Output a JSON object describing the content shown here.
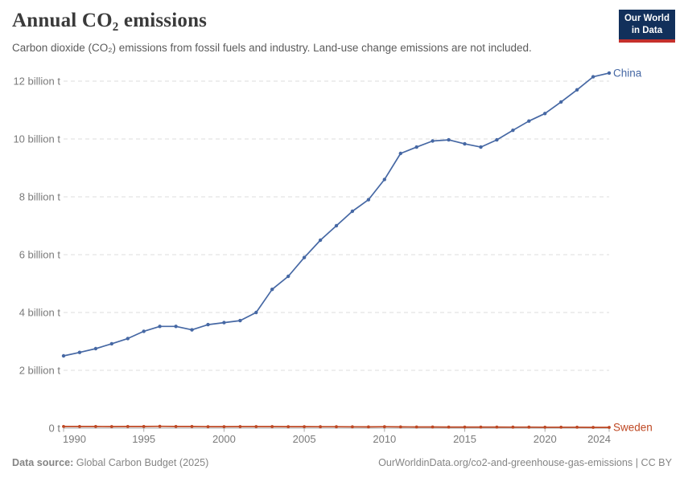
{
  "header": {
    "title": "Annual CO₂ emissions",
    "subtitle": "Carbon dioxide (CO₂) emissions from fossil fuels and industry. Land-use change emissions are not included.",
    "logo": {
      "line1": "Our World",
      "line2": "in Data"
    }
  },
  "footer": {
    "source_label": "Data source:",
    "source_value": "Global Carbon Budget (2025)",
    "link_text": "OurWorldinData.org/co2-and-greenhouse-gas-emissions | CC BY"
  },
  "colors": {
    "china_line": "#4668A4",
    "sweden_line": "#BE4722",
    "logo_bg": "#12305B",
    "logo_stripe": "#C5302C",
    "gridline": "#DCDCDC",
    "axis": "#ABABAB",
    "tick_text": "#7A7A7A",
    "title_text": "#3A3A3A",
    "footer_text": "#858585"
  },
  "chart_data": {
    "type": "line",
    "title": "Annual CO₂ emissions",
    "xlabel": "",
    "ylabel": "",
    "unit": "billion tonnes of CO₂",
    "grid": "horizontal dashed",
    "legend_position": "end-of-line labels",
    "ylim": [
      0,
      12.4
    ],
    "y_ticks": [
      0,
      2,
      4,
      6,
      8,
      10,
      12
    ],
    "y_tick_labels": [
      "0 t",
      "2 billion t",
      "4 billion t",
      "6 billion t",
      "8 billion t",
      "10 billion t",
      "12 billion t"
    ],
    "x_ticks": [
      1990,
      1995,
      2000,
      2005,
      2010,
      2015,
      2020,
      2024
    ],
    "x": [
      1990,
      1991,
      1992,
      1993,
      1994,
      1995,
      1996,
      1997,
      1998,
      1999,
      2000,
      2001,
      2002,
      2003,
      2004,
      2005,
      2006,
      2007,
      2008,
      2009,
      2010,
      2011,
      2012,
      2013,
      2014,
      2015,
      2016,
      2017,
      2018,
      2019,
      2020,
      2021,
      2022,
      2023,
      2024
    ],
    "series": [
      {
        "name": "China",
        "color": "#4668A4",
        "values": [
          2.5,
          2.62,
          2.75,
          2.92,
          3.1,
          3.35,
          3.52,
          3.52,
          3.4,
          3.58,
          3.65,
          3.72,
          4.0,
          4.8,
          5.25,
          5.9,
          6.5,
          7.0,
          7.5,
          7.9,
          8.6,
          9.5,
          9.72,
          9.93,
          9.97,
          9.83,
          9.72,
          9.97,
          10.3,
          10.62,
          10.88,
          11.28,
          11.7,
          12.15,
          12.28
        ]
      },
      {
        "name": "Sweden",
        "color": "#BE4722",
        "values": [
          0.057,
          0.057,
          0.057,
          0.056,
          0.059,
          0.058,
          0.063,
          0.057,
          0.057,
          0.054,
          0.053,
          0.055,
          0.055,
          0.055,
          0.054,
          0.052,
          0.051,
          0.05,
          0.048,
          0.045,
          0.049,
          0.045,
          0.042,
          0.041,
          0.039,
          0.039,
          0.039,
          0.038,
          0.037,
          0.036,
          0.032,
          0.034,
          0.032,
          0.029,
          0.028
        ]
      }
    ]
  }
}
